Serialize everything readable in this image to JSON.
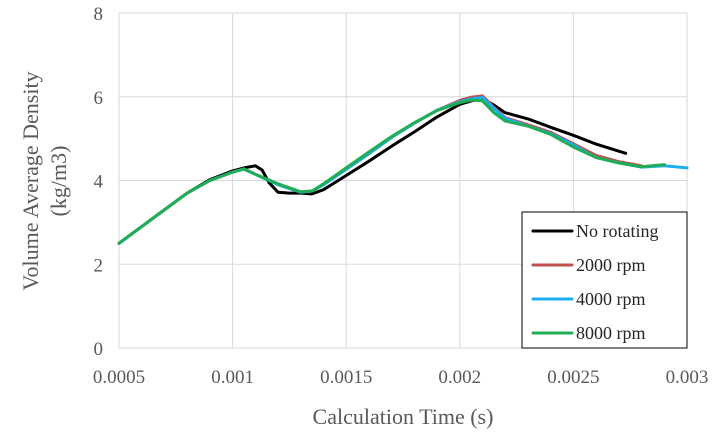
{
  "chart_data": {
    "type": "line",
    "title": "",
    "xlabel": "Calculation Time (s)",
    "ylabel": [
      "Volume Average Density",
      "(kg/m3)"
    ],
    "xlim": [
      0.0005,
      0.003
    ],
    "ylim": [
      0,
      8
    ],
    "x_ticks": [
      0.0005,
      0.001,
      0.0015,
      0.002,
      0.0025,
      0.003
    ],
    "x_tick_labels": [
      "0.0005",
      "0.001",
      "0.0015",
      "0.002",
      "0.0025",
      "0.003"
    ],
    "y_ticks": [
      0,
      2,
      4,
      6,
      8
    ],
    "y_tick_labels": [
      "0",
      "2",
      "4",
      "6",
      "8"
    ],
    "grid": "vertical and horizontal",
    "legend_position": "bottom-right",
    "series": [
      {
        "name": "No rotating",
        "color": "#000000",
        "x": [
          0.0005,
          0.0006,
          0.0007,
          0.0008,
          0.0009,
          0.001,
          0.00105,
          0.0011,
          0.00113,
          0.00116,
          0.0012,
          0.00125,
          0.0013,
          0.00135,
          0.0014,
          0.0015,
          0.0016,
          0.0017,
          0.0018,
          0.0019,
          0.002,
          0.00205,
          0.0021,
          0.00215,
          0.0022,
          0.0023,
          0.0024,
          0.0025,
          0.0026,
          0.0027,
          0.00273
        ],
        "y": [
          2.5,
          2.9,
          3.3,
          3.7,
          4.02,
          4.23,
          4.3,
          4.35,
          4.25,
          3.95,
          3.72,
          3.7,
          3.7,
          3.68,
          3.78,
          4.12,
          4.46,
          4.82,
          5.16,
          5.52,
          5.82,
          5.9,
          5.95,
          5.8,
          5.62,
          5.47,
          5.27,
          5.08,
          4.87,
          4.7,
          4.65
        ]
      },
      {
        "name": "2000 rpm",
        "color": "#c0504d",
        "x": [
          0.0005,
          0.0006,
          0.0007,
          0.0008,
          0.0009,
          0.001,
          0.00105,
          0.0011,
          0.0012,
          0.0013,
          0.00135,
          0.0014,
          0.0015,
          0.0016,
          0.0017,
          0.0018,
          0.0019,
          0.002,
          0.00205,
          0.0021,
          0.00215,
          0.0022,
          0.0023,
          0.0024,
          0.0025,
          0.0026,
          0.0027,
          0.0028
        ],
        "y": [
          2.5,
          2.9,
          3.3,
          3.7,
          4.0,
          4.2,
          4.27,
          4.15,
          3.9,
          3.72,
          3.75,
          3.9,
          4.27,
          4.64,
          5.03,
          5.37,
          5.68,
          5.91,
          5.99,
          6.02,
          5.75,
          5.5,
          5.33,
          5.15,
          4.88,
          4.6,
          4.45,
          4.35
        ]
      },
      {
        "name": "4000 rpm",
        "color": "#19aff0",
        "x": [
          0.0005,
          0.0006,
          0.0007,
          0.0008,
          0.0009,
          0.001,
          0.00105,
          0.0011,
          0.0012,
          0.0013,
          0.00135,
          0.0014,
          0.0015,
          0.0016,
          0.0017,
          0.0018,
          0.0019,
          0.002,
          0.00205,
          0.0021,
          0.00215,
          0.0022,
          0.0023,
          0.0024,
          0.0025,
          0.0026,
          0.0027,
          0.0028,
          0.0029,
          0.003
        ],
        "y": [
          2.5,
          2.9,
          3.3,
          3.7,
          4.0,
          4.2,
          4.27,
          4.15,
          3.9,
          3.72,
          3.75,
          3.9,
          4.27,
          4.64,
          5.03,
          5.37,
          5.68,
          5.88,
          5.95,
          5.98,
          5.72,
          5.48,
          5.3,
          5.12,
          4.85,
          4.55,
          4.42,
          4.32,
          4.35,
          4.3
        ]
      },
      {
        "name": "8000 rpm",
        "color": "#1fae55",
        "x": [
          0.0005,
          0.0006,
          0.0007,
          0.0008,
          0.0009,
          0.001,
          0.00105,
          0.0011,
          0.0012,
          0.0013,
          0.00135,
          0.0014,
          0.0015,
          0.0016,
          0.0017,
          0.0018,
          0.0019,
          0.002,
          0.00205,
          0.0021,
          0.00215,
          0.0022,
          0.0023,
          0.0024,
          0.0025,
          0.0026,
          0.0027,
          0.0028,
          0.0029
        ],
        "y": [
          2.5,
          2.9,
          3.3,
          3.7,
          4.0,
          4.2,
          4.28,
          4.15,
          3.92,
          3.73,
          3.75,
          3.92,
          4.3,
          4.68,
          5.05,
          5.38,
          5.67,
          5.86,
          5.92,
          5.9,
          5.62,
          5.42,
          5.3,
          5.1,
          4.8,
          4.55,
          4.42,
          4.33,
          4.38
        ]
      }
    ]
  }
}
